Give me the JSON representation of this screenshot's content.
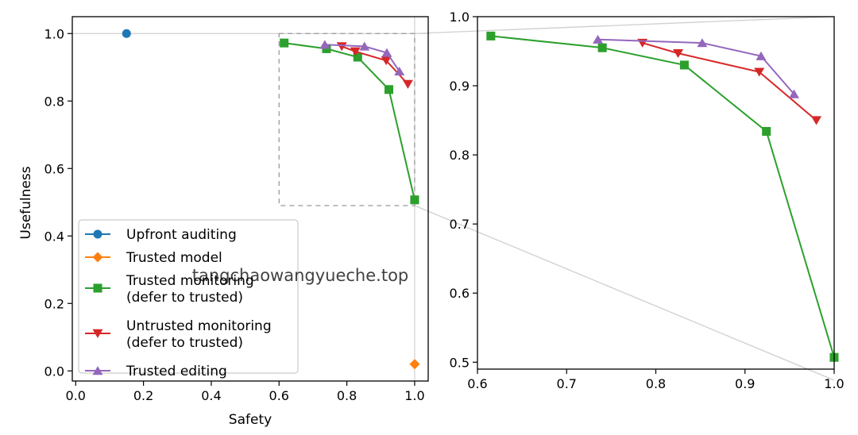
{
  "watermark": "tangchaowangyueche.top",
  "chart_data": [
    {
      "type": "line",
      "panel": "main",
      "title": "",
      "xlabel": "Safety",
      "ylabel": "Usefulness",
      "xlim": [
        -0.01,
        1.04
      ],
      "ylim": [
        -0.03,
        1.05
      ],
      "xticks": [
        0.0,
        0.2,
        0.4,
        0.6,
        0.8,
        1.0
      ],
      "xtick_labels": [
        "0.0",
        "0.2",
        "0.4",
        "0.6",
        "0.8",
        "1.0"
      ],
      "yticks": [
        0.0,
        0.2,
        0.4,
        0.6,
        0.8,
        1.0
      ],
      "ytick_labels": [
        "0.0",
        "0.2",
        "0.4",
        "0.6",
        "0.8",
        "1.0"
      ],
      "reference_lines": {
        "x": 1.0,
        "y": 1.0
      },
      "zoom_box": {
        "x": [
          0.6,
          1.0
        ],
        "y": [
          0.49,
          1.0
        ]
      },
      "legend_position": "lower-left",
      "series": [
        {
          "name": "Upfront auditing",
          "label": "Upfront auditing",
          "color": "#1f77b4",
          "marker": "circle",
          "x": [
            0.15
          ],
          "y": [
            1.0
          ]
        },
        {
          "name": "Trusted model",
          "label": "Trusted model",
          "color": "#ff7f0e",
          "marker": "diamond",
          "x": [
            1.0
          ],
          "y": [
            0.02
          ]
        },
        {
          "name": "Trusted monitoring (defer to trusted)",
          "label": "Trusted monitoring",
          "label2": "(defer to trusted)",
          "color": "#2ca02c",
          "marker": "square",
          "x": [
            0.615,
            0.74,
            0.832,
            0.924,
            1.0
          ],
          "y": [
            0.972,
            0.955,
            0.93,
            0.834,
            0.507
          ]
        },
        {
          "name": "Untrusted monitoring (defer to trusted)",
          "label": "Untrusted monitoring",
          "label2": "(defer to trusted)",
          "color": "#d62728",
          "marker": "triangle-down",
          "x": [
            0.785,
            0.825,
            0.916,
            0.98
          ],
          "y": [
            0.962,
            0.947,
            0.92,
            0.85
          ]
        },
        {
          "name": "Trusted editing",
          "label": "Trusted editing",
          "color": "#9467bd",
          "marker": "triangle-up",
          "x": [
            0.735,
            0.852,
            0.918,
            0.955
          ],
          "y": [
            0.967,
            0.962,
            0.943,
            0.888
          ]
        }
      ]
    },
    {
      "type": "line",
      "panel": "zoom",
      "title": "",
      "xlabel": "",
      "ylabel": "",
      "xlim": [
        0.6,
        1.0
      ],
      "ylim": [
        0.49,
        1.0
      ],
      "xticks": [
        0.6,
        0.7,
        0.8,
        0.9,
        1.0
      ],
      "xtick_labels": [
        "0.6",
        "0.7",
        "0.8",
        "0.9",
        "1.0"
      ],
      "yticks": [
        0.5,
        0.6,
        0.7,
        0.8,
        0.9,
        1.0
      ],
      "ytick_labels": [
        "0.5",
        "0.6",
        "0.7",
        "0.8",
        "0.9",
        "1.0"
      ],
      "series": [
        {
          "name": "Trusted monitoring (defer to trusted)",
          "color": "#2ca02c",
          "marker": "square",
          "x": [
            0.615,
            0.74,
            0.832,
            0.924,
            1.0
          ],
          "y": [
            0.972,
            0.955,
            0.93,
            0.834,
            0.507
          ]
        },
        {
          "name": "Untrusted monitoring (defer to trusted)",
          "color": "#d62728",
          "marker": "triangle-down",
          "x": [
            0.785,
            0.825,
            0.916,
            0.98
          ],
          "y": [
            0.962,
            0.947,
            0.92,
            0.85
          ]
        },
        {
          "name": "Trusted editing",
          "color": "#9467bd",
          "marker": "triangle-up",
          "x": [
            0.735,
            0.852,
            0.918,
            0.955
          ],
          "y": [
            0.967,
            0.962,
            0.943,
            0.888
          ]
        }
      ]
    }
  ]
}
